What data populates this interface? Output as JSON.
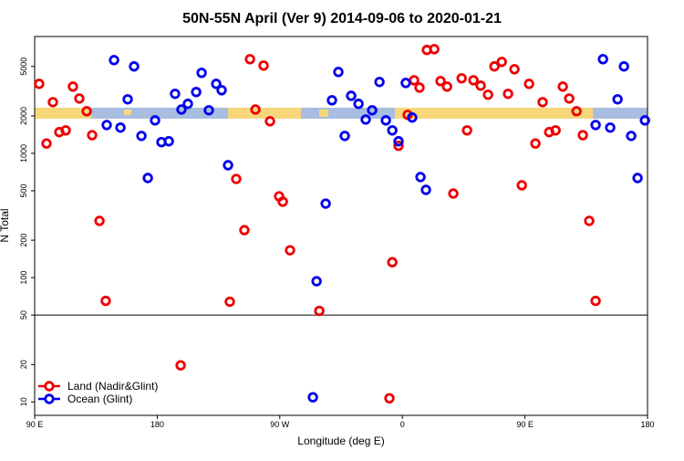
{
  "chart_data": {
    "type": "scatter",
    "title": "50N-55N April (Ver 9)   2014-09-06 to 2020-01-21",
    "x_label": "Longitude (deg E)",
    "y_label": "N Total",
    "xlim": [
      -270,
      180
    ],
    "ylim": [
      7.8,
      8700
    ],
    "log_y": true,
    "legend": "bottom-left",
    "hline": 50,
    "xticks": [
      {
        "value": -270,
        "label": "90 E"
      },
      {
        "value": -180,
        "label": "180"
      },
      {
        "value": -90,
        "label": "90 W"
      },
      0,
      {
        "value": 90,
        "label": "90 E"
      },
      180
    ],
    "yticks": [
      10,
      20,
      50,
      100,
      200,
      500,
      1000,
      2000,
      5000
    ],
    "series": [
      {
        "name": "Land (Nadir&Glint)",
        "color": "#ee0000",
        "x": [
          -266.7,
          -261.3,
          -256.6,
          -251.9,
          -247.2,
          -241.9,
          -237.2,
          -231.8,
          -227.8,
          -222.4,
          -217.8,
          -162.8,
          -126.7,
          -122,
          -116,
          -111.9,
          -107.9,
          -101.9,
          -97.2,
          -90.5,
          -87.8,
          -82.5,
          -61,
          -9.5,
          -7.4,
          -2.8,
          3.9,
          8.6,
          12.6,
          18,
          23.4,
          28,
          32.8,
          37.4,
          43.5,
          47.5,
          52.2,
          57.5,
          62.9,
          67.6,
          73,
          77.6,
          82.3,
          87.7,
          93,
          97.7,
          103,
          107.8,
          112.5,
          117.8,
          122.5,
          127.9,
          132.5,
          137.2,
          141.9
        ],
        "values": [
          3620,
          1200,
          2580,
          1480,
          1530,
          3440,
          2760,
          2180,
          1400,
          286,
          65,
          19.7,
          64,
          622,
          241,
          5720,
          2250,
          5080,
          1810,
          451,
          408,
          166,
          54,
          10.7,
          133,
          1150,
          2040,
          3870,
          3380,
          6780,
          6890,
          3810,
          3440,
          475,
          4010,
          1530,
          3870,
          3500,
          2960,
          5000,
          5440,
          3010,
          4750,
          553,
          3620,
          1200,
          2580,
          1480,
          1530,
          3440,
          2760,
          2180,
          1400,
          286,
          65
        ]
      },
      {
        "name": "Ocean (Glint)",
        "color": "#0000ee",
        "x": [
          -217.1,
          -211.7,
          -207,
          -201.7,
          -197,
          -191.6,
          -186.9,
          -181.6,
          -176.9,
          -171.5,
          -166.9,
          -162.2,
          -157.5,
          -151.4,
          -147.4,
          -142.1,
          -136.7,
          -132.7,
          -128,
          -65.7,
          -63,
          -56.3,
          -51.7,
          -47,
          -42.3,
          -37.6,
          -32.2,
          -26.9,
          -22.2,
          -16.8,
          -12.1,
          -7.4,
          -2.8,
          2.5,
          7.2,
          13.3,
          17.3,
          141.9,
          147.3,
          152.6,
          158,
          162.7,
          168,
          172.7,
          178.1
        ],
        "values": [
          1690,
          5620,
          1610,
          2720,
          5000,
          1380,
          633,
          1840,
          1230,
          1250,
          3010,
          2250,
          2500,
          3110,
          4440,
          2220,
          3620,
          3220,
          802,
          10.9,
          93.5,
          394,
          2670,
          4510,
          1380,
          2900,
          2500,
          1870,
          2220,
          3750,
          1840,
          1530,
          1250,
          3680,
          1940,
          644,
          508,
          1690,
          5720,
          1610,
          2720,
          5000,
          1380,
          633,
          1840
        ]
      }
    ]
  }
}
